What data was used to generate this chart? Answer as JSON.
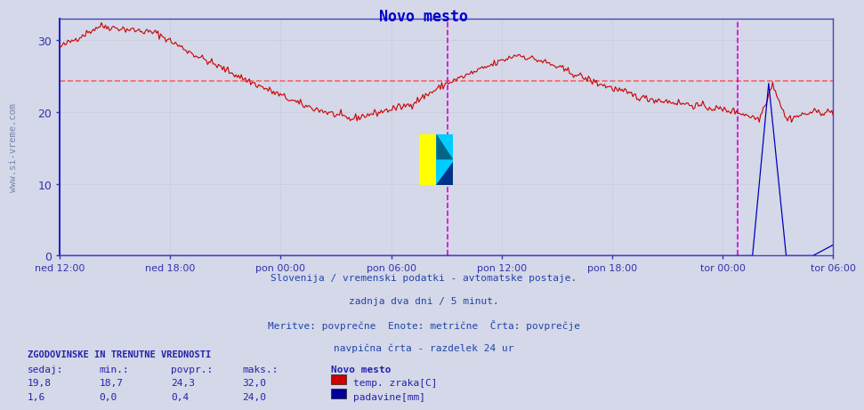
{
  "title": "Novo mesto",
  "title_color": "#0000cc",
  "bg_color": "#d4d8e8",
  "plot_bg_color": "#d4d8e8",
  "ylim": [
    0,
    33
  ],
  "yticks": [
    0,
    10,
    20,
    30
  ],
  "tick_color": "#3333aa",
  "grid_color": "#b8bcd0",
  "grid_linestyle": ":",
  "avg_line_y": 24.3,
  "avg_line_color": "#ff5555",
  "avg_line_style": "--",
  "xtick_labels": [
    "ned 12:00",
    "ned 18:00",
    "pon 00:00",
    "pon 06:00",
    "pon 12:00",
    "pon 18:00",
    "tor 00:00",
    "tor 06:00"
  ],
  "n_points": 576,
  "temp_color": "#cc0000",
  "rain_color": "#0000bb",
  "vline_color": "#dd00dd",
  "vline_style": "--",
  "watermark_text": "www.si-vreme.com",
  "watermark_color": "#7788aa",
  "subtitle_lines": [
    "Slovenija / vremenski podatki - avtomatske postaje.",
    "zadnja dva dni / 5 minut.",
    "Meritve: povprečne  Enote: metrične  Črta: povprečje",
    "navpična črta - razdelek 24 ur"
  ],
  "legend_title": "Novo mesto",
  "legend_entries": [
    {
      "label": "temp. zraka[C]",
      "color": "#cc0000"
    },
    {
      "label": "padavine[mm]",
      "color": "#000099"
    }
  ],
  "stats_header": "ZGODOVINSKE IN TRENUTNE VREDNOSTI",
  "stats_cols": [
    "sedaj:",
    "min.:",
    "povpr.:",
    "maks.:"
  ],
  "stats_row1": [
    "19,8",
    "18,7",
    "24,3",
    "32,0"
  ],
  "stats_row2": [
    "1,6",
    "0,0",
    "0,4",
    "24,0"
  ],
  "spine_color": "#4444bb",
  "left_spine_color": "#2222cc"
}
